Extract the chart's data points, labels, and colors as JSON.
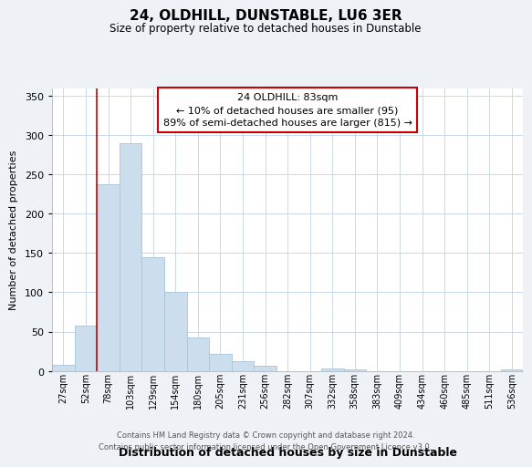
{
  "title": "24, OLDHILL, DUNSTABLE, LU6 3ER",
  "subtitle": "Size of property relative to detached houses in Dunstable",
  "xlabel": "Distribution of detached houses by size in Dunstable",
  "ylabel": "Number of detached properties",
  "bar_labels": [
    "27sqm",
    "52sqm",
    "78sqm",
    "103sqm",
    "129sqm",
    "154sqm",
    "180sqm",
    "205sqm",
    "231sqm",
    "256sqm",
    "282sqm",
    "307sqm",
    "332sqm",
    "358sqm",
    "383sqm",
    "409sqm",
    "434sqm",
    "460sqm",
    "485sqm",
    "511sqm",
    "536sqm"
  ],
  "bar_heights": [
    8,
    57,
    238,
    290,
    145,
    101,
    42,
    21,
    12,
    6,
    0,
    0,
    3,
    2,
    0,
    0,
    0,
    0,
    0,
    0,
    2
  ],
  "bar_color": "#ccdded",
  "bar_edge_color": "#a8c4d8",
  "vline_x_index": 2,
  "vline_color": "#cc0000",
  "ylim": [
    0,
    360
  ],
  "yticks": [
    0,
    50,
    100,
    150,
    200,
    250,
    300,
    350
  ],
  "annotation_title": "24 OLDHILL: 83sqm",
  "annotation_line1": "← 10% of detached houses are smaller (95)",
  "annotation_line2": "89% of semi-detached houses are larger (815) →",
  "annotation_box_color": "#ffffff",
  "annotation_box_edge": "#cc0000",
  "footer_line1": "Contains HM Land Registry data © Crown copyright and database right 2024.",
  "footer_line2": "Contains public sector information licensed under the Open Government Licence v3.0.",
  "bg_color": "#eef2f7",
  "plot_bg_color": "#ffffff",
  "grid_color": "#c8d8ea"
}
